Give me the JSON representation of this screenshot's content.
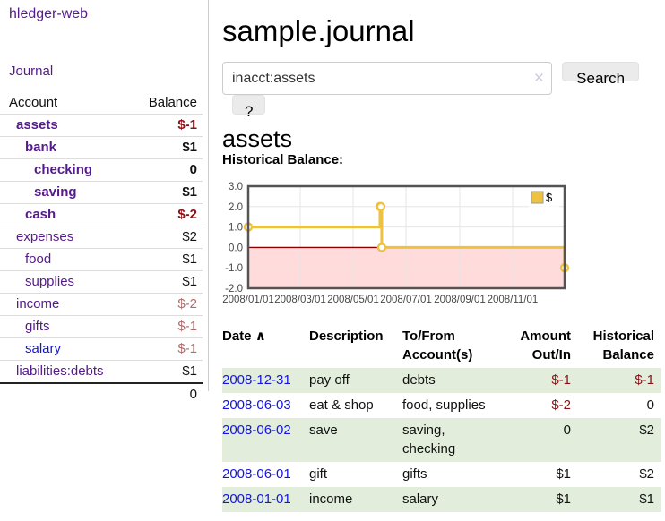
{
  "brand": "hledger-web",
  "nav": {
    "journal_label": "Journal"
  },
  "colors": {
    "purple_link": "#551a8b",
    "blue_link": "#1414e0",
    "neg_strong": "#8b1016",
    "neg_soft": "#b36a6a",
    "stripe_green": "#e2eedb",
    "divider": "#cccccc"
  },
  "sidebar": {
    "headers": {
      "account": "Account",
      "balance": "Balance"
    },
    "accounts": [
      {
        "label": "assets",
        "indent": 1,
        "bold": true,
        "link": "purple",
        "balance": "$-1",
        "bal_class": "neg-strong",
        "bal_bold": true
      },
      {
        "label": "bank",
        "indent": 2,
        "bold": true,
        "link": "purple",
        "balance": "$1",
        "bal_class": "",
        "bal_bold": true
      },
      {
        "label": "checking",
        "indent": 3,
        "bold": true,
        "link": "purple",
        "balance": "0",
        "bal_class": "",
        "bal_bold": true
      },
      {
        "label": "saving",
        "indent": 3,
        "bold": true,
        "link": "purple",
        "balance": "$1",
        "bal_class": "",
        "bal_bold": true
      },
      {
        "label": "cash",
        "indent": 2,
        "bold": true,
        "link": "purple",
        "balance": "$-2",
        "bal_class": "neg-strong",
        "bal_bold": true
      },
      {
        "label": "expenses",
        "indent": 1,
        "bold": false,
        "link": "purple",
        "balance": "$2",
        "bal_class": "",
        "bal_bold": false
      },
      {
        "label": "food",
        "indent": 2,
        "bold": false,
        "link": "purple",
        "balance": "$1",
        "bal_class": "",
        "bal_bold": false
      },
      {
        "label": "supplies",
        "indent": 2,
        "bold": false,
        "link": "purple",
        "balance": "$1",
        "bal_class": "",
        "bal_bold": false
      },
      {
        "label": "income",
        "indent": 1,
        "bold": false,
        "link": "purple",
        "balance": "$-2",
        "bal_class": "neg-soft",
        "bal_bold": false
      },
      {
        "label": "gifts",
        "indent": 2,
        "bold": false,
        "link": "purple",
        "balance": "$-1",
        "bal_class": "neg-soft",
        "bal_bold": false
      },
      {
        "label": "salary",
        "indent": 2,
        "bold": false,
        "link": "blue",
        "balance": "$-1",
        "bal_class": "neg-soft",
        "bal_bold": false
      },
      {
        "label": "liabilities:debts",
        "indent": 1,
        "bold": false,
        "link": "purple",
        "balance": "$1",
        "bal_class": "",
        "bal_bold": false
      }
    ],
    "total": "0"
  },
  "header": {
    "title": "sample.journal"
  },
  "search": {
    "value": "inacct:assets",
    "clear_icon": "×",
    "button_label": "Search",
    "help_label": "?"
  },
  "account_page": {
    "title": "assets",
    "chart_label": "Historical Balance:"
  },
  "chart_data": {
    "type": "line",
    "step": true,
    "title": "Historical Balance",
    "xlim": [
      0,
      365
    ],
    "ylim": [
      -2,
      3
    ],
    "grid": true,
    "legend_position": "top-right",
    "legend": {
      "label": "$",
      "swatch_color": "#edc240",
      "swatch_border": "#999999"
    },
    "line_color": "#edc240",
    "marker_fill": "#ffffff",
    "negative_fill": "#ffdbdb",
    "zero_line_color": "#8b0000",
    "grid_color": "#e6e6e6",
    "border_color": "#545454",
    "tick_label_color": "#484848",
    "series": [
      {
        "name": "$",
        "points": [
          {
            "x": 0,
            "y": 1,
            "date": "2008-01-01"
          },
          {
            "x": 152,
            "y": 2,
            "date": "2008-06-01"
          },
          {
            "x": 153,
            "y": 2,
            "date": "2008-06-02"
          },
          {
            "x": 154,
            "y": 0,
            "date": "2008-06-03"
          },
          {
            "x": 365,
            "y": -1,
            "date": "2008-12-31"
          }
        ]
      }
    ],
    "x_ticks": [
      {
        "x": 0,
        "label": "2008/01/01"
      },
      {
        "x": 60,
        "label": "2008/03/01"
      },
      {
        "x": 121,
        "label": "2008/05/01"
      },
      {
        "x": 182,
        "label": "2008/07/01"
      },
      {
        "x": 244,
        "label": "2008/09/01"
      },
      {
        "x": 305,
        "label": "2008/11/01"
      }
    ],
    "y_ticks": [
      {
        "y": 3,
        "label": "3.0"
      },
      {
        "y": 2,
        "label": "2.0"
      },
      {
        "y": 1,
        "label": "1.0"
      },
      {
        "y": 0,
        "label": "0.0"
      },
      {
        "y": -1,
        "label": "-1.0"
      },
      {
        "y": -2,
        "label": "-2.0"
      }
    ]
  },
  "transactions": {
    "headers": {
      "date": "Date",
      "sort_icon": "∧",
      "description": "Description",
      "accounts": "To/From\nAccount(s)",
      "amount": "Amount\nOut/In",
      "balance": "Historical\nBalance"
    },
    "rows": [
      {
        "date": "2008-12-31",
        "description": "pay off",
        "accounts": "debts",
        "amount": "$-1",
        "amount_neg": true,
        "balance": "$-1",
        "balance_neg": true,
        "stripe": true
      },
      {
        "date": "2008-06-03",
        "description": "eat & shop",
        "accounts": "food, supplies",
        "amount": "$-2",
        "amount_neg": true,
        "balance": "0",
        "balance_neg": false,
        "stripe": false
      },
      {
        "date": "2008-06-02",
        "description": "save",
        "accounts": "saving,\nchecking",
        "amount": "0",
        "amount_neg": false,
        "balance": "$2",
        "balance_neg": false,
        "stripe": true
      },
      {
        "date": "2008-06-01",
        "description": "gift",
        "accounts": "gifts",
        "amount": "$1",
        "amount_neg": false,
        "balance": "$2",
        "balance_neg": false,
        "stripe": false
      },
      {
        "date": "2008-01-01",
        "description": "income",
        "accounts": "salary",
        "amount": "$1",
        "amount_neg": false,
        "balance": "$1",
        "balance_neg": false,
        "stripe": true
      }
    ]
  }
}
